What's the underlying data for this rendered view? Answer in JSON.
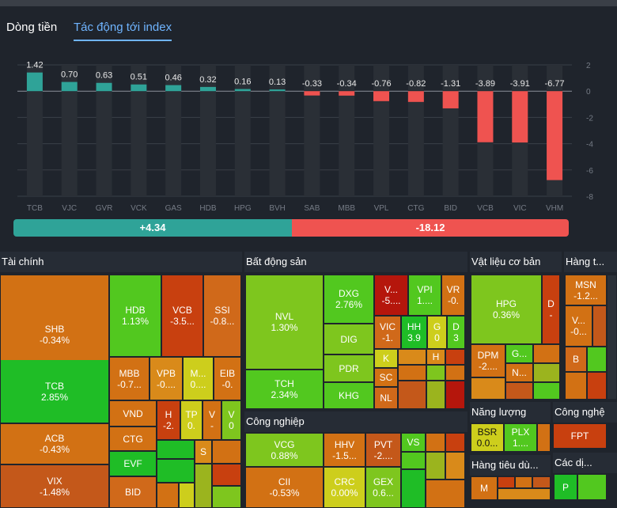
{
  "tabs": {
    "money_flow": "Dòng tiền",
    "index_impact": "Tác động tới index"
  },
  "chart_data": {
    "type": "bar",
    "categories": [
      "TCB",
      "VJC",
      "GVR",
      "VCK",
      "GAS",
      "HDB",
      "HPG",
      "BVH",
      "SAB",
      "MBB",
      "VPL",
      "CTG",
      "BID",
      "VCB",
      "VIC",
      "VHM"
    ],
    "values": [
      1.42,
      0.7,
      0.63,
      0.51,
      0.46,
      0.32,
      0.16,
      0.13,
      -0.33,
      -0.34,
      -0.76,
      -0.82,
      -1.31,
      -3.89,
      -3.91,
      -6.77
    ],
    "value_labels": [
      "1.42",
      "0.70",
      "0.63",
      "0.51",
      "0.46",
      "0.32",
      "0.16",
      "0.13",
      "-0.33",
      "-0.34",
      "-0.76",
      "-0.82",
      "-1.31",
      "-3.89",
      "-3.91",
      "-6.77"
    ],
    "y_ticks": [
      "2",
      "0",
      "-2",
      "-4",
      "-6",
      "-8"
    ],
    "ylim": [
      -8,
      2
    ],
    "colors": {
      "positive": "#2fa398",
      "negative": "#ef5350"
    }
  },
  "summary": {
    "positive": "+4.34",
    "negative": "-18.12"
  },
  "sectors": {
    "finance": "Tài chính",
    "real_estate": "Bất động sản",
    "materials": "Vật liệu cơ bản",
    "goods": "Hàng t...",
    "industry": "Công nghiệp",
    "energy": "Năng lượng",
    "tech": "Công nghệ",
    "consumer": "Hàng tiêu dù...",
    "services": "Các dị..."
  },
  "cells": {
    "shb": {
      "t": "SHB",
      "v": "-0.34%"
    },
    "tcb": {
      "t": "TCB",
      "v": "2.85%"
    },
    "acb": {
      "t": "ACB",
      "v": "-0.43%"
    },
    "vix": {
      "t": "VIX",
      "v": "-1.48%"
    },
    "hdb": {
      "t": "HDB",
      "v": "1.13%"
    },
    "vcb": {
      "t": "VCB",
      "v": "-3.5..."
    },
    "ssi": {
      "t": "SSI",
      "v": "-0.8..."
    },
    "mbb": {
      "t": "MBB",
      "v": "-0.7..."
    },
    "vpb": {
      "t": "VPB",
      "v": "-0...."
    },
    "m": {
      "t": "M...",
      "v": "0...."
    },
    "eib": {
      "t": "EIB",
      "v": "-0."
    },
    "vnd": {
      "t": "VND",
      "v": ""
    },
    "h": {
      "t": "H",
      "v": "-2."
    },
    "tp": {
      "t": "TP",
      "v": "0."
    },
    "v1": {
      "t": "V",
      "v": "-"
    },
    "v2": {
      "t": "V",
      "v": "0"
    },
    "ctg": {
      "t": "CTG",
      "v": ""
    },
    "evf": {
      "t": "EVF",
      "v": ""
    },
    "bid": {
      "t": "BID",
      "v": ""
    },
    "s": {
      "t": "S",
      "v": ""
    },
    "nvl": {
      "t": "NVL",
      "v": "1.30%"
    },
    "dxg": {
      "t": "DXG",
      "v": "2.76%"
    },
    "vdots": {
      "t": "V...",
      "v": "-5...."
    },
    "vpi": {
      "t": "VPI",
      "v": "1...."
    },
    "vr": {
      "t": "VR",
      "v": "-0."
    },
    "dig": {
      "t": "DIG",
      "v": ""
    },
    "vic": {
      "t": "VIC",
      "v": "-1."
    },
    "hh": {
      "t": "HH",
      "v": "3.9"
    },
    "g": {
      "t": "G",
      "v": "0"
    },
    "d": {
      "t": "D",
      "v": "3"
    },
    "tch": {
      "t": "TCH",
      "v": "2.34%"
    },
    "pdr": {
      "t": "PDR",
      "v": ""
    },
    "k": {
      "t": "K",
      "v": ""
    },
    "hbds": {
      "t": "H",
      "v": ""
    },
    "sc": {
      "t": "SC",
      "v": ""
    },
    "khg": {
      "t": "KHG",
      "v": ""
    },
    "nl": {
      "t": "NL",
      "v": ""
    },
    "hpg": {
      "t": "HPG",
      "v": "0.36%"
    },
    "dmat": {
      "t": "D",
      "v": "-"
    },
    "dpm": {
      "t": "DPM",
      "v": "-2...."
    },
    "gmat": {
      "t": "G...",
      "v": ""
    },
    "nmat": {
      "t": "N...",
      "v": ""
    },
    "msn": {
      "t": "MSN",
      "v": "-1.2..."
    },
    "vgoods": {
      "t": "V...",
      "v": "-0..."
    },
    "b": {
      "t": "B",
      "v": ""
    },
    "vcg": {
      "t": "VCG",
      "v": "0.88%"
    },
    "hhv": {
      "t": "HHV",
      "v": "-1.5..."
    },
    "pvt": {
      "t": "PVT",
      "v": "-2...."
    },
    "vs": {
      "t": "VS",
      "v": ""
    },
    "cii": {
      "t": "CII",
      "v": "-0.53%"
    },
    "crc": {
      "t": "CRC",
      "v": "0.00%"
    },
    "gex": {
      "t": "GEX",
      "v": "0.6..."
    },
    "bsr": {
      "t": "BSR",
      "v": "0.0..."
    },
    "plx": {
      "t": "PLX",
      "v": "1...."
    },
    "fpt": {
      "t": "FPT",
      "v": ""
    },
    "mcons": {
      "t": "M",
      "v": ""
    },
    "p": {
      "t": "P",
      "v": ""
    }
  }
}
